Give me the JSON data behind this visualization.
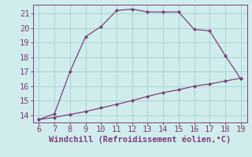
{
  "upper_x": [
    6,
    7,
    8,
    9,
    10,
    11,
    12,
    13,
    14,
    15,
    16,
    17,
    18,
    19
  ],
  "upper_y": [
    13.7,
    14.1,
    17.0,
    19.4,
    20.1,
    21.2,
    21.3,
    21.1,
    21.1,
    21.1,
    19.9,
    19.8,
    18.1,
    16.5
  ],
  "lower_x": [
    6,
    7,
    8,
    9,
    10,
    11,
    12,
    13,
    14,
    15,
    16,
    17,
    18,
    19
  ],
  "lower_y": [
    13.7,
    13.85,
    14.05,
    14.25,
    14.5,
    14.75,
    15.0,
    15.3,
    15.55,
    15.75,
    16.0,
    16.15,
    16.35,
    16.55
  ],
  "line_color": "#7b3f7b",
  "marker_color": "#7b3f7b",
  "bg_color": "#d0ecec",
  "grid_color": "#a8d4d4",
  "xlabel": "Windchill (Refroidissement éolien,°C)",
  "xlabel_color": "#7b3f7b",
  "tick_color": "#7b3f7b",
  "spine_color": "#7b3f7b",
  "xlim": [
    5.6,
    19.4
  ],
  "ylim": [
    13.5,
    21.6
  ],
  "yticks": [
    14,
    15,
    16,
    17,
    18,
    19,
    20,
    21
  ],
  "xticks": [
    6,
    7,
    8,
    9,
    10,
    11,
    12,
    13,
    14,
    15,
    16,
    17,
    18,
    19
  ],
  "tick_fontsize": 7.5,
  "xlabel_fontsize": 7.5
}
